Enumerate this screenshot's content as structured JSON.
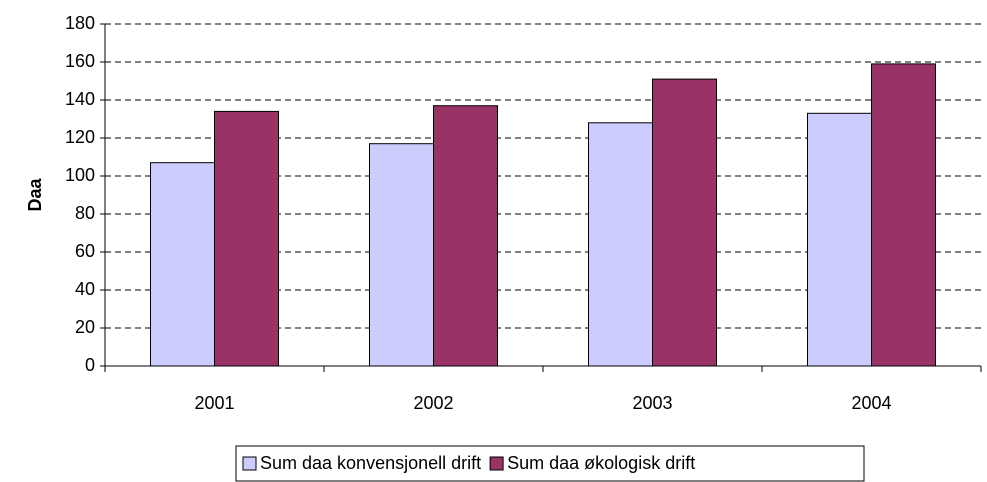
{
  "chart_data": {
    "type": "bar",
    "y_label": "Daa",
    "categories": [
      "2001",
      "2002",
      "2003",
      "2004"
    ],
    "series": [
      {
        "name": "Sum daa konvensjonell drift",
        "color": "#ccccff",
        "values": [
          107,
          117,
          128,
          133
        ]
      },
      {
        "name": "Sum daa økologisk drift",
        "color": "#993366",
        "values": [
          134,
          137,
          151,
          159
        ]
      }
    ],
    "ylim": [
      0,
      180
    ],
    "yticks": [
      0,
      20,
      40,
      60,
      80,
      100,
      120,
      140,
      160,
      180
    ],
    "grid": true
  }
}
